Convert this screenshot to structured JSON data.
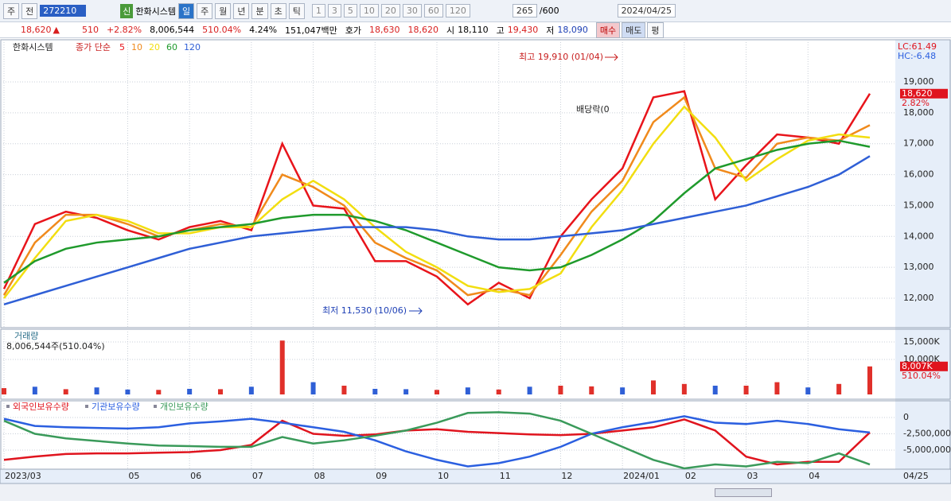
{
  "toolbar": {
    "labels": [
      "주",
      "전"
    ],
    "code": "272210",
    "badge": "신",
    "name": "한화시스템",
    "periods": [
      "일",
      "주",
      "월",
      "년",
      "분",
      "초",
      "틱"
    ],
    "intervals": [
      "1",
      "3",
      "5",
      "10",
      "20",
      "30",
      "60",
      "120"
    ],
    "count": "265",
    "total": "/600",
    "date": "2024/04/25"
  },
  "info_bar": {
    "price": "18,620",
    "arrow": "▲",
    "change": "510",
    "rate": "+2.82%",
    "volume": "8,006,544",
    "volume_rate": "510.04%",
    "turnover": "4.24%",
    "amount": "151,047백만",
    "quote_label": "호가",
    "ask": "18,630",
    "bid": "18,620",
    "open_label": "시",
    "open": "18,110",
    "high_label": "고",
    "high": "19,430",
    "low_label": "저",
    "low": "18,090",
    "buttons": [
      "매수",
      "매도",
      "평"
    ]
  },
  "chart_data": [
    {
      "type": "line",
      "legend_title": "한화시스템",
      "legend_prefix": "종가 단순",
      "ylim": [
        11048,
        20364
      ],
      "yticks": [
        {
          "value": 12000,
          "label": "12,000"
        },
        {
          "value": 13000,
          "label": "13,000"
        },
        {
          "value": 14000,
          "label": "14,000"
        },
        {
          "value": 15000,
          "label": "15,000"
        },
        {
          "value": 16000,
          "label": "16,000"
        },
        {
          "value": 17000,
          "label": "17,000"
        },
        {
          "value": 18000,
          "label": "18,000"
        },
        {
          "value": 19000,
          "label": "19,000"
        }
      ],
      "grid": true,
      "right_labels": [
        "LC:61.49",
        "HC:-6.48"
      ],
      "current": {
        "value": 18620,
        "label": "18,620"
      },
      "current_rate": "2.82%",
      "annotations": [
        "최고 19,910 (01/04)",
        "최저 11,530 (10/06)",
        "배당락(0"
      ],
      "series": [
        {
          "name": "5",
          "color": "#e8141b",
          "values": [
            12300,
            14400,
            14800,
            14600,
            14200,
            13900,
            14300,
            14500,
            14200,
            17000,
            15000,
            14900,
            13200,
            13200,
            12700,
            11800,
            12500,
            12000,
            14000,
            15200,
            16200,
            18500,
            18700,
            15200,
            16300,
            17300,
            17200,
            17000,
            18620
          ]
        },
        {
          "name": "10",
          "color": "#f08a1c",
          "values": [
            12100,
            13800,
            14700,
            14700,
            14400,
            14000,
            14200,
            14400,
            14300,
            16000,
            15600,
            15000,
            13800,
            13300,
            12900,
            12100,
            12300,
            12100,
            13400,
            14800,
            15800,
            17700,
            18500,
            16200,
            15900,
            17000,
            17200,
            17100,
            17600
          ]
        },
        {
          "name": "20",
          "color": "#f2de10",
          "values": [
            12000,
            13300,
            14500,
            14700,
            14500,
            14100,
            14100,
            14300,
            14300,
            15200,
            15800,
            15200,
            14300,
            13500,
            13000,
            12400,
            12200,
            12300,
            12800,
            14300,
            15500,
            17000,
            18200,
            17200,
            15800,
            16500,
            17100,
            17300,
            17200
          ]
        },
        {
          "name": "60",
          "color": "#1f9a2c",
          "values": [
            12500,
            13200,
            13600,
            13800,
            13900,
            14000,
            14200,
            14300,
            14400,
            14600,
            14700,
            14700,
            14500,
            14200,
            13800,
            13400,
            13000,
            12900,
            13000,
            13400,
            13900,
            14500,
            15400,
            16200,
            16500,
            16800,
            17000,
            17100,
            16900
          ]
        },
        {
          "name": "120",
          "color": "#2f5fd6",
          "values": [
            11800,
            12100,
            12400,
            12700,
            13000,
            13300,
            13600,
            13800,
            14000,
            14100,
            14200,
            14300,
            14300,
            14300,
            14200,
            14000,
            13900,
            13900,
            14000,
            14100,
            14200,
            14400,
            14600,
            14800,
            15000,
            15300,
            15600,
            16000,
            16600
          ]
        }
      ]
    },
    {
      "type": "bar",
      "title": "거래량",
      "subtitle": "8,006,544주(510.04%)",
      "ylim": [
        -1364,
        18636
      ],
      "yticks": [
        {
          "value": 10000,
          "label": "10,000K"
        },
        {
          "value": 15000,
          "label": "15,000K"
        }
      ],
      "grid": true,
      "current": {
        "value": 8007,
        "label": "8,007K"
      },
      "current_rate": "510.04%",
      "values": [
        1800,
        2200,
        1500,
        2000,
        1400,
        1300,
        1600,
        1500,
        2200,
        15400,
        3500,
        2500,
        1600,
        1500,
        1300,
        2000,
        1400,
        2200,
        2500,
        2300,
        2000,
        4000,
        3000,
        2500,
        2500,
        3500,
        2000,
        3000,
        8007
      ],
      "colors": [
        "#e0302a",
        "#2f5fd6",
        "#e0302a",
        "#2f5fd6",
        "#2f5fd6",
        "#e0302a",
        "#2f5fd6",
        "#e0302a",
        "#2f5fd6",
        "#e0302a",
        "#2f5fd6",
        "#e0302a",
        "#2f5fd6",
        "#2f5fd6",
        "#e0302a",
        "#2f5fd6",
        "#e0302a",
        "#2f5fd6",
        "#e0302a",
        "#e0302a",
        "#2f5fd6",
        "#e0302a",
        "#e0302a",
        "#2f5fd6",
        "#e0302a",
        "#e0302a",
        "#2f5fd6",
        "#e0302a",
        "#e0302a"
      ]
    },
    {
      "type": "line",
      "ylim": [
        -7930000,
        2560000
      ],
      "yticks": [
        0,
        {
          "value": -2500000,
          "label": "-2,500,000"
        },
        {
          "value": -5000000,
          "label": "-5,000,000"
        }
      ],
      "grid": true,
      "categories": [
        "2023/03",
        null,
        null,
        null,
        "05",
        null,
        "06",
        null,
        "07",
        null,
        "08",
        null,
        "09",
        null,
        "10",
        null,
        "11",
        null,
        "12",
        null,
        "2024/01",
        null,
        "02",
        null,
        "03",
        null,
        "04",
        null,
        null
      ],
      "end_label": "04/25",
      "series": [
        {
          "name": "외국인보유수량",
          "color": "#e0141e",
          "values": [
            -6500000,
            -6000000,
            -5600000,
            -5500000,
            -5500000,
            -5400000,
            -5300000,
            -5000000,
            -4200000,
            -500000,
            -2500000,
            -2800000,
            -2600000,
            -2000000,
            -1800000,
            -2200000,
            -2400000,
            -2600000,
            -2700000,
            -2500000,
            -2000000,
            -1500000,
            -300000,
            -2000000,
            -6000000,
            -7200000,
            -6800000,
            -6800000,
            -2300000
          ]
        },
        {
          "name": "기관보유수량",
          "color": "#2b5fe0",
          "values": [
            -200000,
            -1300000,
            -1500000,
            -1600000,
            -1700000,
            -1500000,
            -900000,
            -600000,
            -200000,
            -800000,
            -1500000,
            -2200000,
            -3500000,
            -5200000,
            -6500000,
            -7500000,
            -7000000,
            -6000000,
            -4500000,
            -2500000,
            -1500000,
            -700000,
            200000,
            -800000,
            -1000000,
            -500000,
            -1000000,
            -1800000,
            -2300000
          ]
        },
        {
          "name": "개인보유수량",
          "color": "#3a9a5a",
          "values": [
            -500000,
            -2500000,
            -3200000,
            -3600000,
            -4000000,
            -4300000,
            -4400000,
            -4500000,
            -4500000,
            -3000000,
            -4000000,
            -3500000,
            -2800000,
            -2000000,
            -800000,
            700000,
            800000,
            600000,
            -500000,
            -2500000,
            -4500000,
            -6500000,
            -7800000,
            -7200000,
            -7500000,
            -6800000,
            -7000000,
            -5500000,
            -7200000
          ]
        }
      ]
    }
  ]
}
